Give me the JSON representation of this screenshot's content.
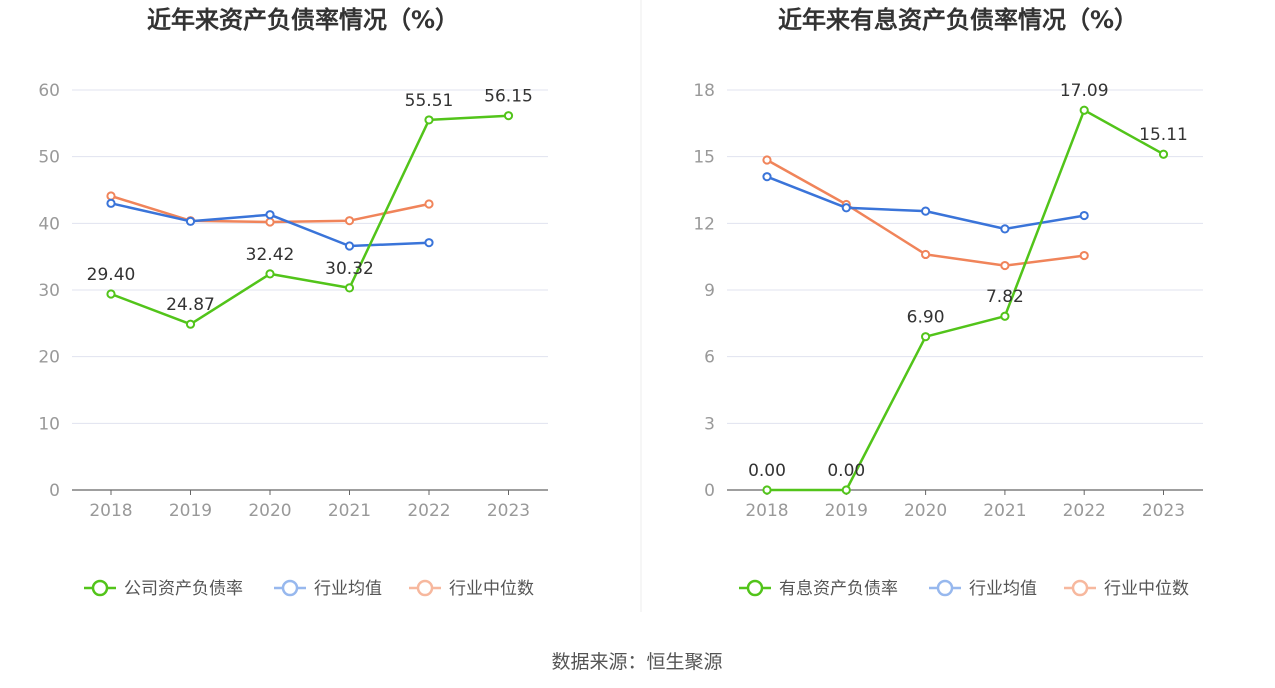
{
  "chart_data": [
    {
      "type": "line",
      "title": "近年来资产负债率情况（%）",
      "categories": [
        "2018",
        "2019",
        "2020",
        "2021",
        "2022",
        "2023"
      ],
      "ylim": [
        0,
        60
      ],
      "yticks": [
        "0",
        "10",
        "20",
        "30",
        "40",
        "50",
        "60"
      ],
      "grid": true,
      "legend_position": "bottom",
      "series": [
        {
          "name": "公司资产负债率",
          "color": "#52c41a",
          "values": [
            29.4,
            24.87,
            32.42,
            30.32,
            55.51,
            56.15
          ],
          "labels": [
            "29.40",
            "24.87",
            "32.42",
            "30.32",
            "55.51",
            "56.15"
          ]
        },
        {
          "name": "行业均值",
          "color": "#3a74d9",
          "values": [
            43.0,
            40.3,
            41.3,
            36.6,
            37.1,
            null
          ]
        },
        {
          "name": "行业中位数",
          "color": "#f0845a",
          "values": [
            44.1,
            40.4,
            40.2,
            40.4,
            42.9,
            null
          ]
        }
      ]
    },
    {
      "type": "line",
      "title": "近年来有息资产负债率情况（%）",
      "categories": [
        "2018",
        "2019",
        "2020",
        "2021",
        "2022",
        "2023"
      ],
      "ylim": [
        0,
        18
      ],
      "yticks": [
        "0",
        "3",
        "6",
        "9",
        "12",
        "15",
        "18"
      ],
      "grid": true,
      "legend_position": "bottom",
      "series": [
        {
          "name": "有息资产负债率",
          "color": "#52c41a",
          "values": [
            0.0,
            0.0,
            6.9,
            7.82,
            17.09,
            15.11
          ],
          "labels": [
            "0.00",
            "0.00",
            "6.90",
            "7.82",
            "17.09",
            "15.11"
          ]
        },
        {
          "name": "行业均值",
          "color": "#3a74d9",
          "values": [
            14.1,
            12.7,
            12.55,
            11.75,
            12.35,
            null
          ]
        },
        {
          "name": "行业中位数",
          "color": "#f0845a",
          "values": [
            14.85,
            12.85,
            10.6,
            10.1,
            10.55,
            null
          ]
        }
      ]
    }
  ],
  "source": "数据来源：恒生聚源",
  "colors": {
    "axis": "#666666",
    "grid": "#e0e3ef",
    "divider": "#eeeeee"
  }
}
